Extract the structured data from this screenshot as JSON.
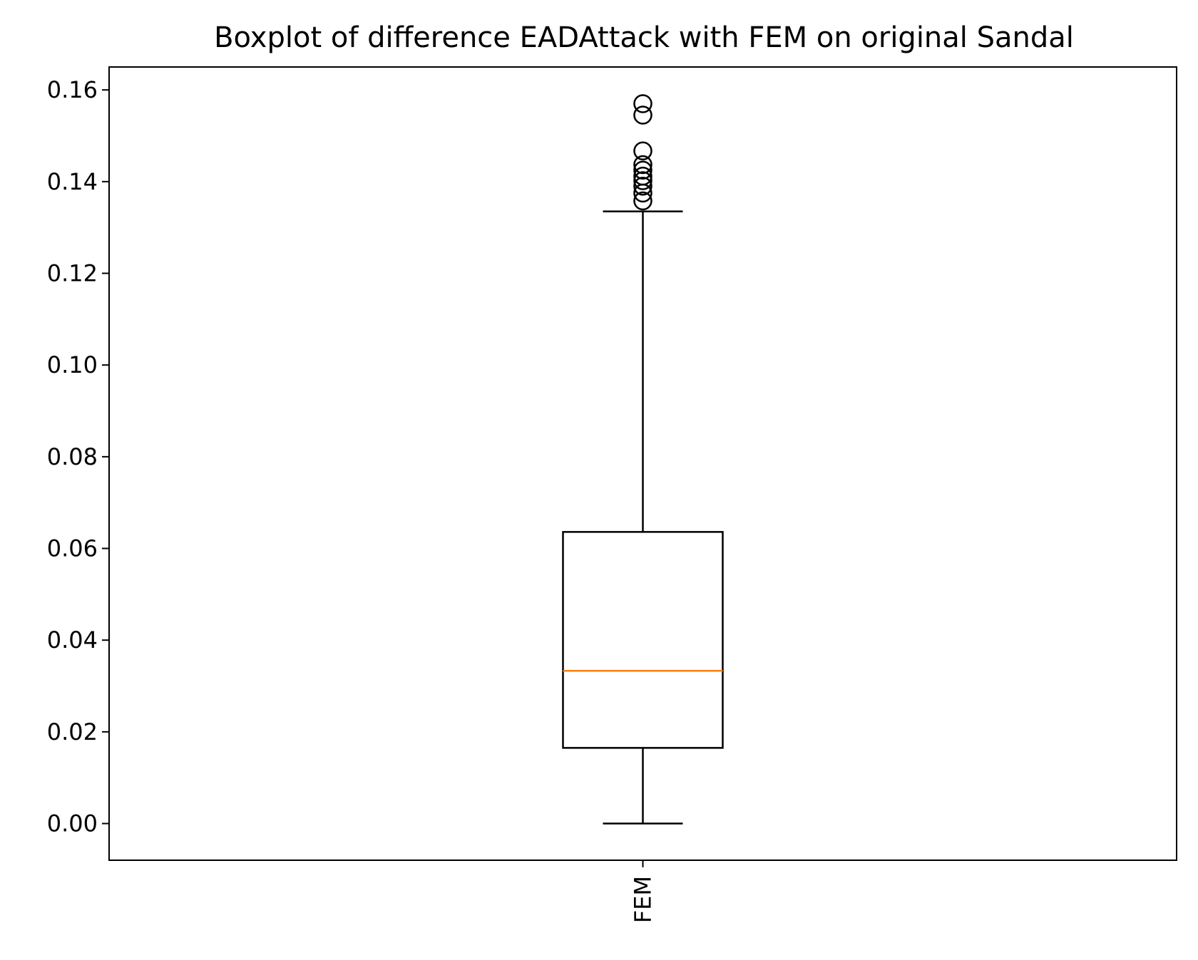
{
  "chart_data": {
    "type": "boxplot",
    "title": "Boxplot of difference EADAttack with FEM on original Sandal",
    "xlabel": "",
    "ylabel": "",
    "categories": [
      "FEM"
    ],
    "ylim": [
      -0.008,
      0.165
    ],
    "yticks": [
      0.0,
      0.02,
      0.04,
      0.06,
      0.08,
      0.1,
      0.12,
      0.14,
      0.16
    ],
    "ytick_labels": [
      "0.00",
      "0.02",
      "0.04",
      "0.06",
      "0.08",
      "0.10",
      "0.12",
      "0.14",
      "0.16"
    ],
    "boxes": [
      {
        "name": "FEM",
        "whisker_low": 0.0,
        "q1": 0.0165,
        "median": 0.0333,
        "q3": 0.0636,
        "whisker_high": 0.1335,
        "outliers": [
          0.1358,
          0.1375,
          0.139,
          0.1402,
          0.1412,
          0.1425,
          0.1437,
          0.1467,
          0.1545,
          0.157
        ]
      }
    ],
    "grid": false,
    "colors": {
      "box": "#000000",
      "median": "#ff7f0e",
      "whisker": "#000000",
      "flier": "#000000"
    }
  }
}
